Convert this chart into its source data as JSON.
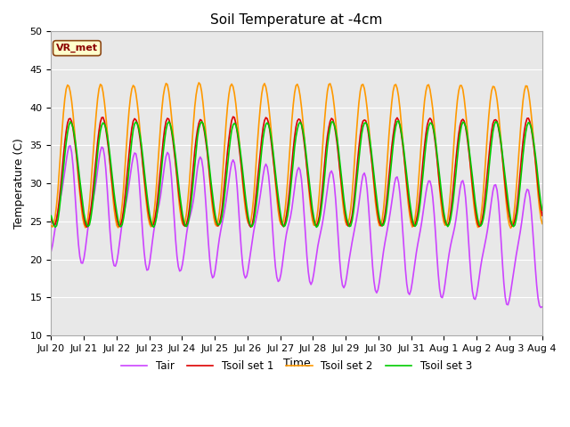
{
  "title": "Soil Temperature at -4cm",
  "xlabel": "Time",
  "ylabel": "Temperature (C)",
  "ylim": [
    10,
    50
  ],
  "plot_bg": "#e8e8e8",
  "fig_bg": "#ffffff",
  "grid_color": "#ffffff",
  "annotation": "VR_met",
  "annotation_color": "#8B0000",
  "annotation_bg": "#ffffcc",
  "annotation_edge": "#8B4513",
  "series_colors": {
    "Tair": "#cc44ff",
    "Tsoil set 1": "#dd0000",
    "Tsoil set 2": "#ff9900",
    "Tsoil set 3": "#00cc00"
  },
  "linewidth": 1.2,
  "xtick_labels": [
    "Jul 20",
    "Jul 21",
    "Jul 22",
    "Jul 23",
    "Jul 24",
    "Jul 25",
    "Jul 26",
    "Jul 27",
    "Jul 28",
    "Jul 29",
    "Jul 30",
    "Jul 31",
    "Aug 1",
    "Aug 2",
    "Aug 3",
    "Aug 4"
  ],
  "title_fontsize": 11,
  "axis_fontsize": 9,
  "tick_fontsize": 8
}
